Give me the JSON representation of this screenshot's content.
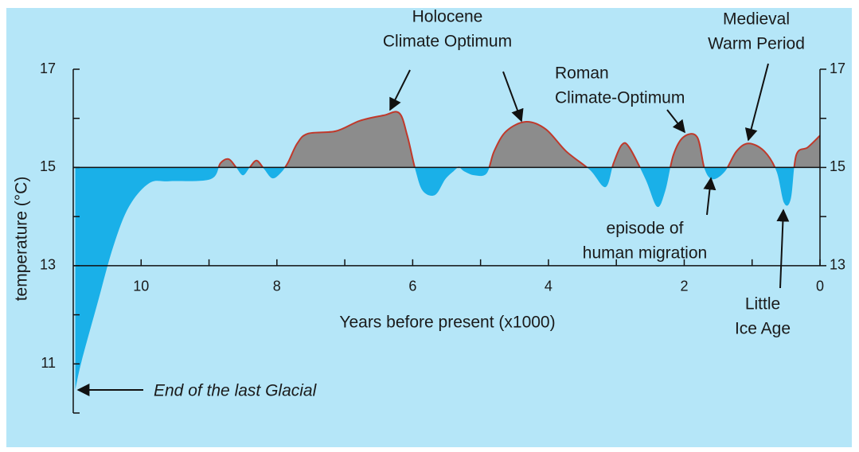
{
  "chart_data": {
    "type": "area",
    "y_label": "temperature (°C)",
    "x_label": "Years before present (x1000)",
    "xlim": [
      11,
      0
    ],
    "xticks": [
      10,
      8,
      6,
      4,
      2,
      0
    ],
    "xminorticks": [
      9,
      7,
      5,
      3,
      1
    ],
    "ylim": [
      10,
      17
    ],
    "yticks": [
      11,
      13,
      15,
      17
    ],
    "yminorticks": [
      10,
      12,
      14,
      16
    ],
    "y2lim": [
      10,
      17
    ],
    "y2ticks": [
      13,
      15,
      17
    ],
    "y2minorticks": [
      14,
      16
    ],
    "baseline": 15,
    "reference_lines": [
      15,
      13
    ],
    "colors": {
      "above": "#8c8c8c",
      "below": "#1ab0e8",
      "line": "#c0392b"
    },
    "x": [
      10.97,
      10.88,
      10.64,
      10.41,
      10.18,
      9.88,
      9.59,
      8.98,
      8.83,
      8.71,
      8.6,
      8.5,
      8.4,
      8.3,
      8.19,
      8.07,
      7.95,
      7.84,
      7.7,
      7.54,
      7.13,
      6.78,
      6.43,
      6.2,
      6.08,
      5.96,
      5.85,
      5.67,
      5.52,
      5.4,
      5.32,
      5.24,
      5.09,
      4.91,
      4.8,
      4.62,
      4.33,
      4.04,
      3.74,
      3.39,
      3.16,
      3.04,
      2.92,
      2.81,
      2.57,
      2.4,
      2.28,
      2.16,
      2.01,
      1.81,
      1.7,
      1.58,
      1.4,
      1.23,
      1.05,
      0.82,
      0.64,
      0.53,
      0.43,
      0.35,
      0.18,
      0
    ],
    "values": [
      10.47,
      11.04,
      12.25,
      13.39,
      14.2,
      14.68,
      14.72,
      14.76,
      15.09,
      15.17,
      15.0,
      14.84,
      15.0,
      15.14,
      14.97,
      14.78,
      14.88,
      15.09,
      15.49,
      15.69,
      15.74,
      15.95,
      16.06,
      16.11,
      15.65,
      14.95,
      14.52,
      14.44,
      14.76,
      14.92,
      15.0,
      14.92,
      14.84,
      14.88,
      15.33,
      15.74,
      15.93,
      15.78,
      15.33,
      14.95,
      14.6,
      15.09,
      15.46,
      15.41,
      14.76,
      14.2,
      14.52,
      15.25,
      15.62,
      15.62,
      14.97,
      14.76,
      14.92,
      15.33,
      15.49,
      15.33,
      14.92,
      14.28,
      14.36,
      15.25,
      15.41,
      15.65
    ],
    "annotations": [
      {
        "lines": [
          "Holocene",
          "Climate Optimum"
        ]
      },
      {
        "lines": [
          "Roman",
          "Climate-Optimum"
        ]
      },
      {
        "lines": [
          "Medieval",
          "Warm Period"
        ]
      },
      {
        "lines": [
          "episode of",
          "human migration"
        ]
      },
      {
        "lines": [
          "Little",
          "Ice Age"
        ]
      },
      {
        "lines": [
          "End of the last Glacial"
        ]
      }
    ]
  }
}
